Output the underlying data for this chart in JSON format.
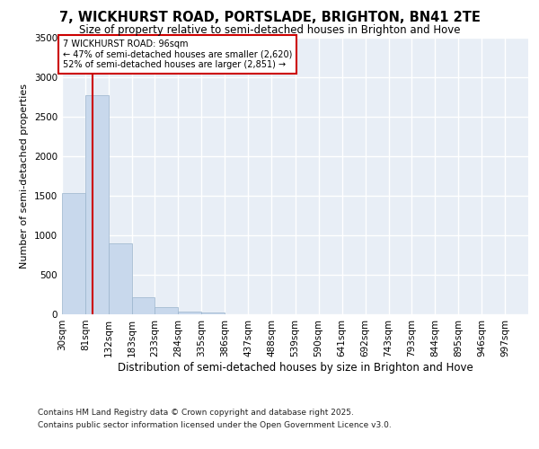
{
  "title1": "7, WICKHURST ROAD, PORTSLADE, BRIGHTON, BN41 2TE",
  "title2": "Size of property relative to semi-detached houses in Brighton and Hove",
  "xlabel": "Distribution of semi-detached houses by size in Brighton and Hove",
  "ylabel": "Number of semi-detached properties",
  "bin_edges": [
    30,
    81,
    132,
    183,
    233,
    284,
    335,
    386,
    437,
    488,
    539,
    590,
    641,
    692,
    743,
    793,
    844,
    895,
    946,
    997,
    1048
  ],
  "values": [
    1540,
    2780,
    900,
    215,
    95,
    38,
    18,
    0,
    0,
    0,
    0,
    0,
    0,
    0,
    0,
    0,
    0,
    0,
    0,
    0
  ],
  "bar_color": "#c8d8ec",
  "bar_edge_color": "#9ab4cc",
  "property_size": 96,
  "property_line_color": "#cc0000",
  "annotation_line1": "7 WICKHURST ROAD: 96sqm",
  "annotation_line2": "← 47% of semi-detached houses are smaller (2,620)",
  "annotation_line3": "52% of semi-detached houses are larger (2,851) →",
  "annotation_box_color": "#cc0000",
  "background_color": "#e8eef6",
  "grid_color": "#ffffff",
  "ylim": [
    0,
    3500
  ],
  "yticks": [
    0,
    500,
    1000,
    1500,
    2000,
    2500,
    3000,
    3500
  ],
  "footer1": "Contains HM Land Registry data © Crown copyright and database right 2025.",
  "footer2": "Contains public sector information licensed under the Open Government Licence v3.0.",
  "title1_fontsize": 10.5,
  "title2_fontsize": 8.5,
  "xlabel_fontsize": 8.5,
  "ylabel_fontsize": 8,
  "tick_fontsize": 7.5,
  "footer_fontsize": 6.5
}
